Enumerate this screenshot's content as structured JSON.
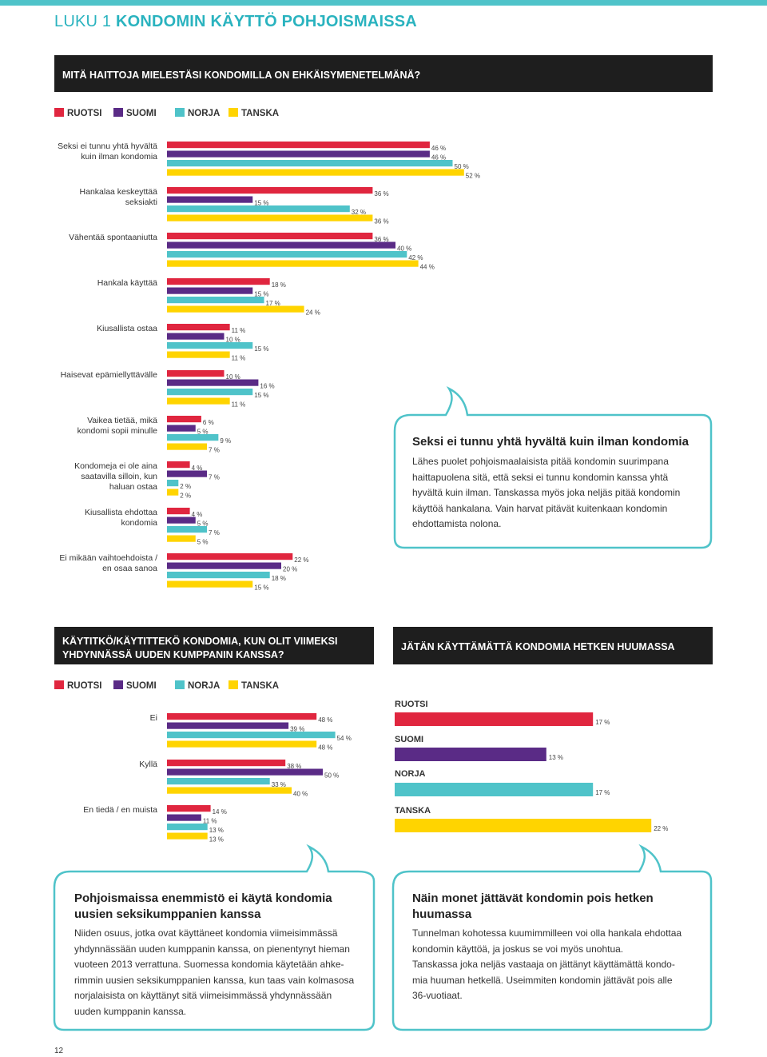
{
  "chapter": {
    "prefix": "LUKU 1",
    "title": "KONDOMIN KÄYTTÖ POHJOISMAISSA"
  },
  "colors": {
    "ruotsi": "#e0263f",
    "suomi": "#5a2b86",
    "norja": "#4fc3c9",
    "tanska": "#ffd400",
    "accent": "#2ab3bf",
    "header_bg": "#1e1e1e"
  },
  "legend": [
    "RUOTSI",
    "SUOMI",
    "NORJA",
    "TANSKA"
  ],
  "section1": {
    "title": "MITÄ HAITTOJA MIELESTÄSI KONDOMILLA ON EHKÄISYMENETELMÄNÄ?"
  },
  "section2": {
    "title_line1": "KÄYTITKÖ/KÄYTITTEKÖ KONDOMIA, KUN OLIT VIIMEKSI",
    "title_line2": "YHDYNNÄSSÄ UUDEN KUMPPANIN KANSSA?"
  },
  "section3": {
    "title": "JÄTÄN KÄYTTÄMÄTTÄ KONDOMIA HETKEN HUUMASSA"
  },
  "chart_data": [
    {
      "type": "bar",
      "orientation": "horizontal",
      "title": "MITÄ HAITTOJA MIELESTÄSI KONDOMILLA ON EHKÄISYMENETELMÄNÄ?",
      "unit": "%",
      "legend": [
        "RUOTSI",
        "SUOMI",
        "NORJA",
        "TANSKA"
      ],
      "categories": [
        [
          "Seksi ei tunnu yhtä hyvältä",
          "kuin ilman kondomia"
        ],
        [
          "Hankalaa keskeyttää",
          "seksiakti"
        ],
        [
          "Vähentää spontaaniutta"
        ],
        [
          "Hankala käyttää"
        ],
        [
          "Kiusallista ostaa"
        ],
        [
          "Haisevat epämiellyttävälle"
        ],
        [
          "Vaikea tietää, mikä",
          "kondomi sopii minulle"
        ],
        [
          "Kondomeja ei ole aina",
          "saatavilla silloin, kun",
          "haluan ostaa"
        ],
        [
          "Kiusallista ehdottaa",
          "kondomia"
        ],
        [
          "Ei mikään vaihtoehdoista /",
          "en osaa sanoa"
        ]
      ],
      "series": [
        {
          "name": "RUOTSI",
          "values": [
            46,
            36,
            36,
            18,
            11,
            10,
            6,
            4,
            4,
            22
          ]
        },
        {
          "name": "SUOMI",
          "values": [
            46,
            15,
            40,
            15,
            10,
            16,
            5,
            7,
            5,
            20
          ]
        },
        {
          "name": "NORJA",
          "values": [
            50,
            32,
            42,
            17,
            15,
            15,
            9,
            2,
            7,
            18
          ]
        },
        {
          "name": "TANSKA",
          "values": [
            52,
            36,
            44,
            24,
            11,
            11,
            7,
            2,
            5,
            15
          ]
        }
      ]
    },
    {
      "type": "bar",
      "orientation": "horizontal",
      "title": "KÄYTITKÖ/KÄYTITTEKÖ KONDOMIA, KUN OLIT VIIMEKSI YHDYNNÄSSÄ UUDEN KUMPPANIN KANSSA?",
      "unit": "%",
      "legend": [
        "RUOTSI",
        "SUOMI",
        "NORJA",
        "TANSKA"
      ],
      "categories": [
        [
          "Ei"
        ],
        [
          "Kyllä"
        ],
        [
          "En tiedä / en muista"
        ]
      ],
      "series": [
        {
          "name": "RUOTSI",
          "values": [
            48,
            38,
            14
          ]
        },
        {
          "name": "SUOMI",
          "values": [
            39,
            50,
            11
          ]
        },
        {
          "name": "NORJA",
          "values": [
            54,
            33,
            13
          ]
        },
        {
          "name": "TANSKA",
          "values": [
            48,
            40,
            13
          ]
        }
      ]
    },
    {
      "type": "bar",
      "orientation": "horizontal",
      "title": "JÄTÄN KÄYTTÄMÄTTÄ KONDOMIA HETKEN HUUMASSA",
      "unit": "%",
      "categories": [
        "RUOTSI",
        "SUOMI",
        "NORJA",
        "TANSKA"
      ],
      "values": [
        17,
        13,
        17,
        22
      ]
    }
  ],
  "bubbles": [
    {
      "title": "Seksi ei tunnu yhtä hyvältä kuin ilman kondomia",
      "lines": [
        "Lähes puolet pohjoismaalaisista pitää kondomin suurimpana",
        "haittapuolena sitä, että seksi ei tunnu kondomin kanssa yhtä",
        "hyvältä kuin ilman. Tanskassa myös joka neljäs pitää kondomin",
        "käyttöä hankalana. Vain harvat pitävät kuitenkaan kondomin",
        "ehdottamista nolona."
      ]
    },
    {
      "title_lines": [
        "Pohjoismaissa enemmistö ei käytä kondomia",
        "uusien seksikumppanien kanssa"
      ],
      "lines": [
        "Niiden osuus, jotka ovat käyttäneet kondomia viimeisimmässä",
        "yhdynnässään uuden kumppanin kanssa, on pienentynyt hieman",
        "vuoteen 2013 verrattuna. Suomessa kondomia käytetään ahke-",
        "rimmin uusien seksikumppanien kanssa, kun taas vain kolmasosa",
        "norjalaisista on käyttänyt sitä viimeisimmässä yhdynnässään",
        "uuden kumppanin kanssa."
      ]
    },
    {
      "title_lines": [
        "Näin monet jättävät kondomin pois hetken",
        "huumassa"
      ],
      "lines": [
        "Tunnelman kohotessa kuumimmilleen voi olla hankala ehdottaa",
        "kondomin käyttöä, ja joskus se voi myös unohtua.",
        "Tanskassa joka neljäs vastaaja on jättänyt käyttämättä kondo-",
        "mia huuman hetkellä. Useimmiten kondomin jättävät pois alle",
        "36-vuotiaat."
      ]
    }
  ],
  "page_number": "12"
}
